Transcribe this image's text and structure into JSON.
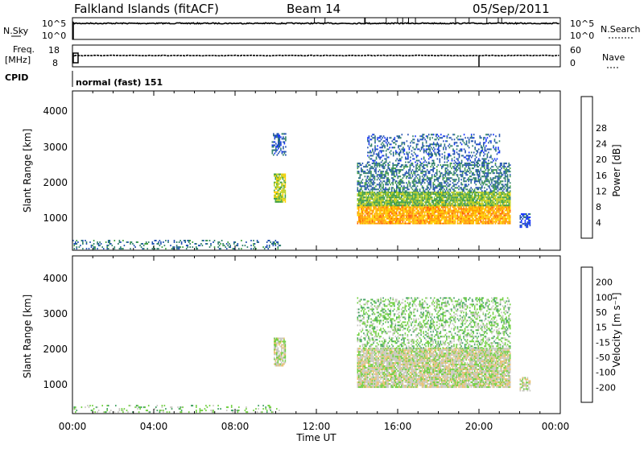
{
  "header": {
    "site": "Falkland Islands (fitACF)",
    "beam": "Beam 14",
    "date": "05/Sep/2011"
  },
  "strips": {
    "nsky_label": "N.Sky",
    "nsky_ticks": [
      "10^5",
      "10^0"
    ],
    "nsearch_label": "N.Search",
    "nsearch_ticks": [
      "10^5",
      "10^0"
    ],
    "freq_label": "Freq.",
    "freq_unit": "[MHz]",
    "freq_ticks": [
      "18",
      "8"
    ],
    "nave_label": "Nave",
    "nave_ticks": [
      "60",
      "0"
    ],
    "cpid_label": "CPID",
    "cpid_text": "normal (fast) 151"
  },
  "axes": {
    "x_ticks": [
      "00:00",
      "04:00",
      "08:00",
      "12:00",
      "16:00",
      "20:00",
      "00:00"
    ],
    "x_label": "Time UT",
    "y_ticks": [
      "1000",
      "2000",
      "3000",
      "4000"
    ],
    "y_label": "Slant Range [km]"
  },
  "colorbars": {
    "power": {
      "label": "Power [dB]",
      "ticks": [
        "4",
        "8",
        "12",
        "16",
        "20",
        "24",
        "28"
      ],
      "colors": [
        "#1030ff",
        "#2050b0",
        "#30806a",
        "#40a040",
        "#b8d020",
        "#ffd000",
        "#ff9a00",
        "#ff5a00",
        "#ff0000"
      ]
    },
    "velocity": {
      "label": "Velocity [m s⁻¹]",
      "ticks": [
        "200",
        "100",
        "50",
        "15",
        "-15",
        "-50",
        "-100",
        "-200"
      ],
      "colors": [
        "#2040d0",
        "#2a7060",
        "#40a060",
        "#70d040",
        "#c8c8c0",
        "#e8c070",
        "#ffa020",
        "#ff6000",
        "#ff0000"
      ]
    }
  },
  "chart_data": [
    {
      "type": "heatmap",
      "panel": "power",
      "x_unit": "hours UT",
      "xlim": [
        0,
        24
      ],
      "y_unit": "km",
      "ylim": [
        180,
        4600
      ],
      "zlim": [
        0,
        32
      ],
      "regions": [
        {
          "t": [
            0.0,
            10.2
          ],
          "r": [
            200,
            450
          ],
          "z": 8,
          "density": 0.25
        },
        {
          "t": [
            9.9,
            10.5
          ],
          "r": [
            1500,
            2300
          ],
          "z": 16,
          "density": 0.8
        },
        {
          "t": [
            9.8,
            10.5
          ],
          "r": [
            2800,
            3400
          ],
          "z": 6,
          "density": 0.5
        },
        {
          "t": [
            14.0,
            21.5
          ],
          "r": [
            900,
            1400
          ],
          "z": 22,
          "density": 0.9
        },
        {
          "t": [
            14.0,
            21.5
          ],
          "r": [
            1400,
            1800
          ],
          "z": 14,
          "density": 0.9
        },
        {
          "t": [
            14.0,
            21.5
          ],
          "r": [
            1800,
            2600
          ],
          "z": 8,
          "density": 0.5
        },
        {
          "t": [
            14.5,
            21.0
          ],
          "r": [
            2600,
            3400
          ],
          "z": 6,
          "density": 0.3
        },
        {
          "t": [
            22.0,
            22.5
          ],
          "r": [
            800,
            1200
          ],
          "z": 4,
          "density": 0.6
        }
      ]
    },
    {
      "type": "heatmap",
      "panel": "velocity",
      "x_unit": "hours UT",
      "xlim": [
        0,
        24
      ],
      "y_unit": "m/s",
      "ylim": [
        180,
        4600
      ],
      "zlim": [
        -200,
        200
      ],
      "regions": [
        {
          "t": [
            0.0,
            10.2
          ],
          "r": [
            200,
            420
          ],
          "z": -40,
          "density": 0.2
        },
        {
          "t": [
            9.9,
            10.5
          ],
          "r": [
            1500,
            2300
          ],
          "z": 0,
          "density": 0.8
        },
        {
          "t": [
            14.0,
            21.5
          ],
          "r": [
            900,
            2000
          ],
          "z": 0,
          "density": 0.9
        },
        {
          "t": [
            14.0,
            21.5
          ],
          "r": [
            2000,
            3400
          ],
          "z": -40,
          "density": 0.4
        },
        {
          "t": [
            22.0,
            22.5
          ],
          "r": [
            800,
            1200
          ],
          "z": 0,
          "density": 0.6
        }
      ]
    }
  ]
}
